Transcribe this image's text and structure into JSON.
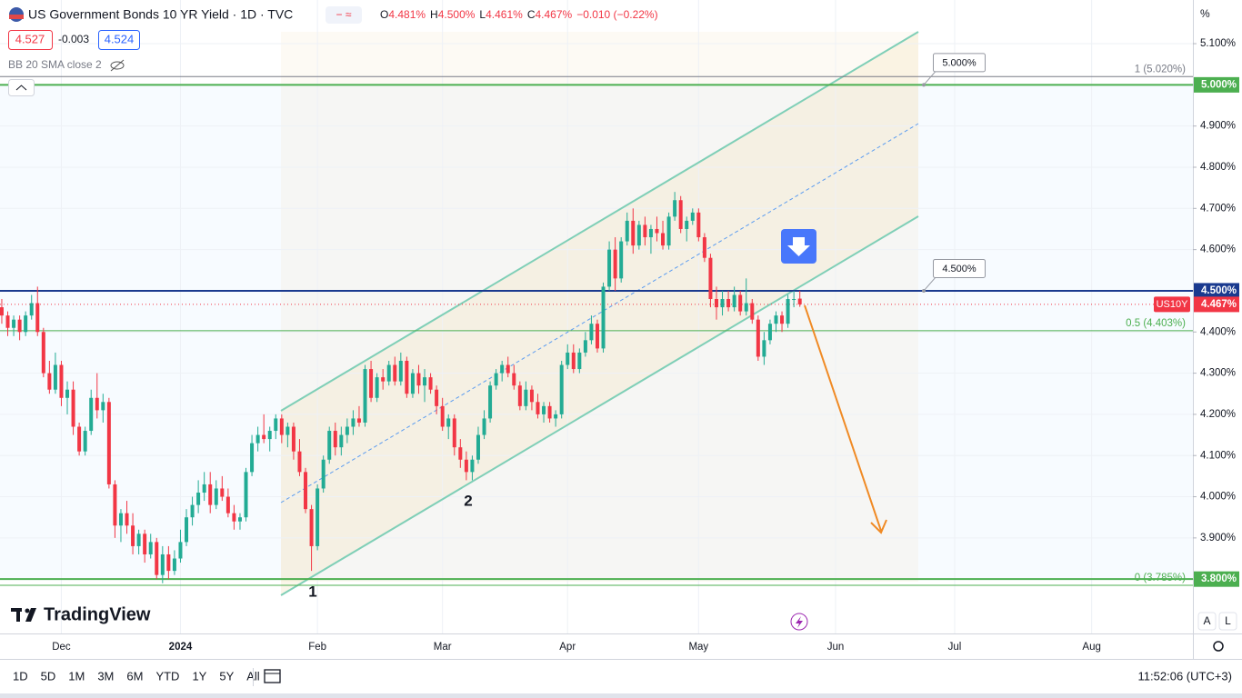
{
  "header": {
    "title": "US Government Bonds 10 YR Yield · 1D · TVC",
    "ohlc": [
      "O",
      "4.481%",
      "H",
      "4.500%",
      "L",
      "4.461%",
      "C",
      "4.467%"
    ],
    "change": "−0.010 (−0.22%)",
    "bid": "4.527",
    "spread": "-0.003",
    "ask": "4.524",
    "indicator": "BB 20 SMA close 2"
  },
  "chart_data": {
    "type": "candlestick",
    "up_color": "#22ab94",
    "down_color": "#f23645",
    "xlim": [
      -0.3,
      200
    ],
    "ylim": [
      3.668,
      5.206
    ],
    "xticks": [
      {
        "value": 10,
        "label": "Dec"
      },
      {
        "value": 30,
        "label": "2024"
      },
      {
        "value": 53,
        "label": "Feb"
      },
      {
        "value": 74,
        "label": "Mar"
      },
      {
        "value": 95,
        "label": "Apr"
      },
      {
        "value": 117,
        "label": "May"
      },
      {
        "value": 140,
        "label": "Jun"
      },
      {
        "value": 160,
        "label": "Jul"
      },
      {
        "value": 183,
        "label": "Aug"
      }
    ],
    "yticks": [
      {
        "value": 3.8,
        "label": "3.800%"
      },
      {
        "value": 3.9,
        "label": "3.900%"
      },
      {
        "value": 4.0,
        "label": "4.000%"
      },
      {
        "value": 4.1,
        "label": "4.100%"
      },
      {
        "value": 4.2,
        "label": "4.200%"
      },
      {
        "value": 4.3,
        "label": "4.300%"
      },
      {
        "value": 4.4,
        "label": "4.400%"
      },
      {
        "value": 4.5,
        "label": "4.500%"
      },
      {
        "value": 4.6,
        "label": "4.600%"
      },
      {
        "value": 4.7,
        "label": "4.700%"
      },
      {
        "value": 4.8,
        "label": "4.800%"
      },
      {
        "value": 4.9,
        "label": "4.900%"
      },
      {
        "value": 5.0,
        "label": "5.000%"
      },
      {
        "value": 5.1,
        "label": "5.100%"
      }
    ],
    "grid": true,
    "ohlc": [
      [
        4.46,
        4.48,
        4.42,
        4.44
      ],
      [
        4.44,
        4.45,
        4.39,
        4.41
      ],
      [
        4.41,
        4.44,
        4.39,
        4.43
      ],
      [
        4.43,
        4.44,
        4.38,
        4.4
      ],
      [
        4.4,
        4.45,
        4.39,
        4.44
      ],
      [
        4.44,
        4.49,
        4.43,
        4.47
      ],
      [
        4.47,
        4.51,
        4.39,
        4.4
      ],
      [
        4.4,
        4.41,
        4.29,
        4.3
      ],
      [
        4.3,
        4.33,
        4.25,
        4.26
      ],
      [
        4.26,
        4.35,
        4.25,
        4.32
      ],
      [
        4.32,
        4.33,
        4.22,
        4.24
      ],
      [
        4.24,
        4.28,
        4.2,
        4.26
      ],
      [
        4.26,
        4.28,
        4.15,
        4.17
      ],
      [
        4.17,
        4.18,
        4.1,
        4.11
      ],
      [
        4.11,
        4.17,
        4.1,
        4.16
      ],
      [
        4.16,
        4.26,
        4.15,
        4.24
      ],
      [
        4.24,
        4.3,
        4.19,
        4.21
      ],
      [
        4.21,
        4.25,
        4.18,
        4.23
      ],
      [
        4.23,
        4.24,
        4.02,
        4.03
      ],
      [
        4.03,
        4.04,
        3.9,
        3.93
      ],
      [
        3.93,
        3.97,
        3.89,
        3.96
      ],
      [
        3.96,
        3.99,
        3.91,
        3.93
      ],
      [
        3.93,
        3.96,
        3.86,
        3.88
      ],
      [
        3.88,
        3.92,
        3.86,
        3.91
      ],
      [
        3.91,
        3.92,
        3.84,
        3.86
      ],
      [
        3.86,
        3.91,
        3.85,
        3.89
      ],
      [
        3.89,
        3.9,
        3.8,
        3.81
      ],
      [
        3.81,
        3.88,
        3.79,
        3.86
      ],
      [
        3.86,
        3.88,
        3.8,
        3.82
      ],
      [
        3.82,
        3.87,
        3.81,
        3.85
      ],
      [
        3.85,
        3.92,
        3.84,
        3.89
      ],
      [
        3.89,
        3.97,
        3.88,
        3.95
      ],
      [
        3.95,
        4.0,
        3.93,
        3.98
      ],
      [
        3.98,
        4.04,
        3.96,
        4.01
      ],
      [
        4.01,
        4.06,
        3.99,
        4.03
      ],
      [
        4.03,
        4.06,
        3.96,
        3.98
      ],
      [
        3.98,
        4.04,
        3.97,
        4.02
      ],
      [
        4.02,
        4.05,
        3.99,
        4.0
      ],
      [
        4.0,
        4.02,
        3.95,
        3.96
      ],
      [
        3.96,
        3.98,
        3.92,
        3.94
      ],
      [
        3.94,
        3.96,
        3.92,
        3.95
      ],
      [
        3.95,
        4.07,
        3.94,
        4.06
      ],
      [
        4.06,
        4.15,
        4.05,
        4.13
      ],
      [
        4.13,
        4.17,
        4.11,
        4.15
      ],
      [
        4.15,
        4.2,
        4.13,
        4.14
      ],
      [
        4.14,
        4.17,
        4.11,
        4.16
      ],
      [
        4.16,
        4.2,
        4.14,
        4.19
      ],
      [
        4.19,
        4.2,
        4.13,
        4.15
      ],
      [
        4.15,
        4.18,
        4.12,
        4.17
      ],
      [
        4.17,
        4.18,
        4.09,
        4.11
      ],
      [
        4.11,
        4.14,
        4.05,
        4.06
      ],
      [
        4.06,
        4.07,
        3.96,
        3.97
      ],
      [
        3.97,
        3.98,
        3.82,
        3.88
      ],
      [
        3.88,
        4.03,
        3.87,
        4.02
      ],
      [
        4.02,
        4.1,
        4.01,
        4.09
      ],
      [
        4.09,
        4.17,
        4.08,
        4.16
      ],
      [
        4.16,
        4.18,
        4.1,
        4.12
      ],
      [
        4.12,
        4.17,
        4.1,
        4.15
      ],
      [
        4.15,
        4.19,
        4.13,
        4.17
      ],
      [
        4.17,
        4.21,
        4.15,
        4.19
      ],
      [
        4.19,
        4.22,
        4.17,
        4.18
      ],
      [
        4.18,
        4.32,
        4.17,
        4.31
      ],
      [
        4.31,
        4.33,
        4.23,
        4.24
      ],
      [
        4.24,
        4.3,
        4.23,
        4.29
      ],
      [
        4.29,
        4.31,
        4.26,
        4.28
      ],
      [
        4.28,
        4.33,
        4.27,
        4.32
      ],
      [
        4.32,
        4.34,
        4.27,
        4.28
      ],
      [
        4.28,
        4.35,
        4.27,
        4.33
      ],
      [
        4.33,
        4.34,
        4.24,
        4.25
      ],
      [
        4.25,
        4.31,
        4.24,
        4.3
      ],
      [
        4.3,
        4.32,
        4.25,
        4.27
      ],
      [
        4.27,
        4.31,
        4.23,
        4.29
      ],
      [
        4.29,
        4.3,
        4.25,
        4.26
      ],
      [
        4.26,
        4.27,
        4.2,
        4.22
      ],
      [
        4.22,
        4.24,
        4.16,
        4.17
      ],
      [
        4.17,
        4.2,
        4.14,
        4.19
      ],
      [
        4.19,
        4.2,
        4.1,
        4.12
      ],
      [
        4.12,
        4.14,
        4.07,
        4.09
      ],
      [
        4.09,
        4.11,
        4.04,
        4.06
      ],
      [
        4.06,
        4.1,
        4.04,
        4.09
      ],
      [
        4.09,
        4.17,
        4.08,
        4.15
      ],
      [
        4.15,
        4.21,
        4.14,
        4.19
      ],
      [
        4.19,
        4.28,
        4.18,
        4.27
      ],
      [
        4.27,
        4.31,
        4.26,
        4.3
      ],
      [
        4.3,
        4.33,
        4.28,
        4.32
      ],
      [
        4.32,
        4.34,
        4.29,
        4.3
      ],
      [
        4.3,
        4.32,
        4.26,
        4.27
      ],
      [
        4.27,
        4.28,
        4.21,
        4.22
      ],
      [
        4.22,
        4.28,
        4.21,
        4.26
      ],
      [
        4.26,
        4.27,
        4.21,
        4.23
      ],
      [
        4.23,
        4.25,
        4.19,
        4.2
      ],
      [
        4.2,
        4.23,
        4.18,
        4.22
      ],
      [
        4.22,
        4.23,
        4.18,
        4.19
      ],
      [
        4.19,
        4.21,
        4.17,
        4.2
      ],
      [
        4.2,
        4.33,
        4.19,
        4.32
      ],
      [
        4.32,
        4.37,
        4.31,
        4.35
      ],
      [
        4.35,
        4.37,
        4.3,
        4.31
      ],
      [
        4.31,
        4.36,
        4.3,
        4.35
      ],
      [
        4.35,
        4.4,
        4.34,
        4.38
      ],
      [
        4.38,
        4.44,
        4.37,
        4.42
      ],
      [
        4.42,
        4.43,
        4.35,
        4.36
      ],
      [
        4.36,
        4.52,
        4.35,
        4.51
      ],
      [
        4.51,
        4.62,
        4.5,
        4.6
      ],
      [
        4.6,
        4.63,
        4.5,
        4.53
      ],
      [
        4.53,
        4.63,
        4.52,
        4.62
      ],
      [
        4.62,
        4.69,
        4.61,
        4.67
      ],
      [
        4.67,
        4.7,
        4.59,
        4.61
      ],
      [
        4.61,
        4.67,
        4.6,
        4.66
      ],
      [
        4.66,
        4.68,
        4.61,
        4.63
      ],
      [
        4.63,
        4.66,
        4.59,
        4.65
      ],
      [
        4.65,
        4.68,
        4.62,
        4.64
      ],
      [
        4.64,
        4.67,
        4.6,
        4.61
      ],
      [
        4.61,
        4.69,
        4.6,
        4.68
      ],
      [
        4.68,
        4.74,
        4.67,
        4.72
      ],
      [
        4.72,
        4.73,
        4.64,
        4.65
      ],
      [
        4.65,
        4.68,
        4.62,
        4.67
      ],
      [
        4.67,
        4.7,
        4.66,
        4.69
      ],
      [
        4.69,
        4.7,
        4.62,
        4.63
      ],
      [
        4.63,
        4.64,
        4.57,
        4.58
      ],
      [
        4.58,
        4.59,
        4.46,
        4.48
      ],
      [
        4.48,
        4.51,
        4.43,
        4.46
      ],
      [
        4.46,
        4.5,
        4.44,
        4.48
      ],
      [
        4.48,
        4.5,
        4.45,
        4.46
      ],
      [
        4.46,
        4.51,
        4.45,
        4.49
      ],
      [
        4.49,
        4.5,
        4.44,
        4.45
      ],
      [
        4.45,
        4.53,
        4.44,
        4.47
      ],
      [
        4.47,
        4.48,
        4.42,
        4.43
      ],
      [
        4.43,
        4.44,
        4.33,
        4.34
      ],
      [
        4.34,
        4.4,
        4.32,
        4.38
      ],
      [
        4.38,
        4.43,
        4.37,
        4.42
      ],
      [
        4.42,
        4.45,
        4.4,
        4.44
      ],
      [
        4.44,
        4.45,
        4.4,
        4.42
      ],
      [
        4.42,
        4.49,
        4.41,
        4.48
      ],
      [
        4.48,
        4.5,
        4.46,
        4.48
      ],
      [
        4.481,
        4.5,
        4.461,
        4.467
      ]
    ],
    "levels": [
      {
        "value": 5.0,
        "label": "5.000%",
        "color": "#4caf50"
      },
      {
        "value": 4.5,
        "label": "4.500%",
        "color": "#1a3a8f"
      },
      {
        "value": 3.8,
        "label": "3.800%",
        "color": "#4caf50"
      }
    ],
    "last_price": {
      "value": 4.467,
      "label": "4.467%",
      "symbol": "US10Y",
      "color": "#f23645"
    },
    "fib_levels": [
      {
        "value": 5.02,
        "label": "1 (5.020%)",
        "color": "#787b86"
      },
      {
        "value": 4.403,
        "label": "0.5 (4.403%)",
        "color": "#4caf50"
      },
      {
        "value": 3.785,
        "label": "0 (3.785%)",
        "color": "#4caf50"
      }
    ],
    "callouts": [
      {
        "value": 5.0,
        "label": "5.000%"
      },
      {
        "value": 4.5,
        "label": "4.500%"
      }
    ],
    "wave_labels": [
      "1",
      "2"
    ]
  },
  "axis_unit": "%",
  "scale_buttons": [
    "A",
    "L"
  ],
  "logo": "TradingView",
  "toolbar": {
    "ranges": [
      "1D",
      "5D",
      "1M",
      "3M",
      "6M",
      "YTD",
      "1Y",
      "5Y",
      "All"
    ],
    "time": "11:52:06 (UTC+3)"
  }
}
